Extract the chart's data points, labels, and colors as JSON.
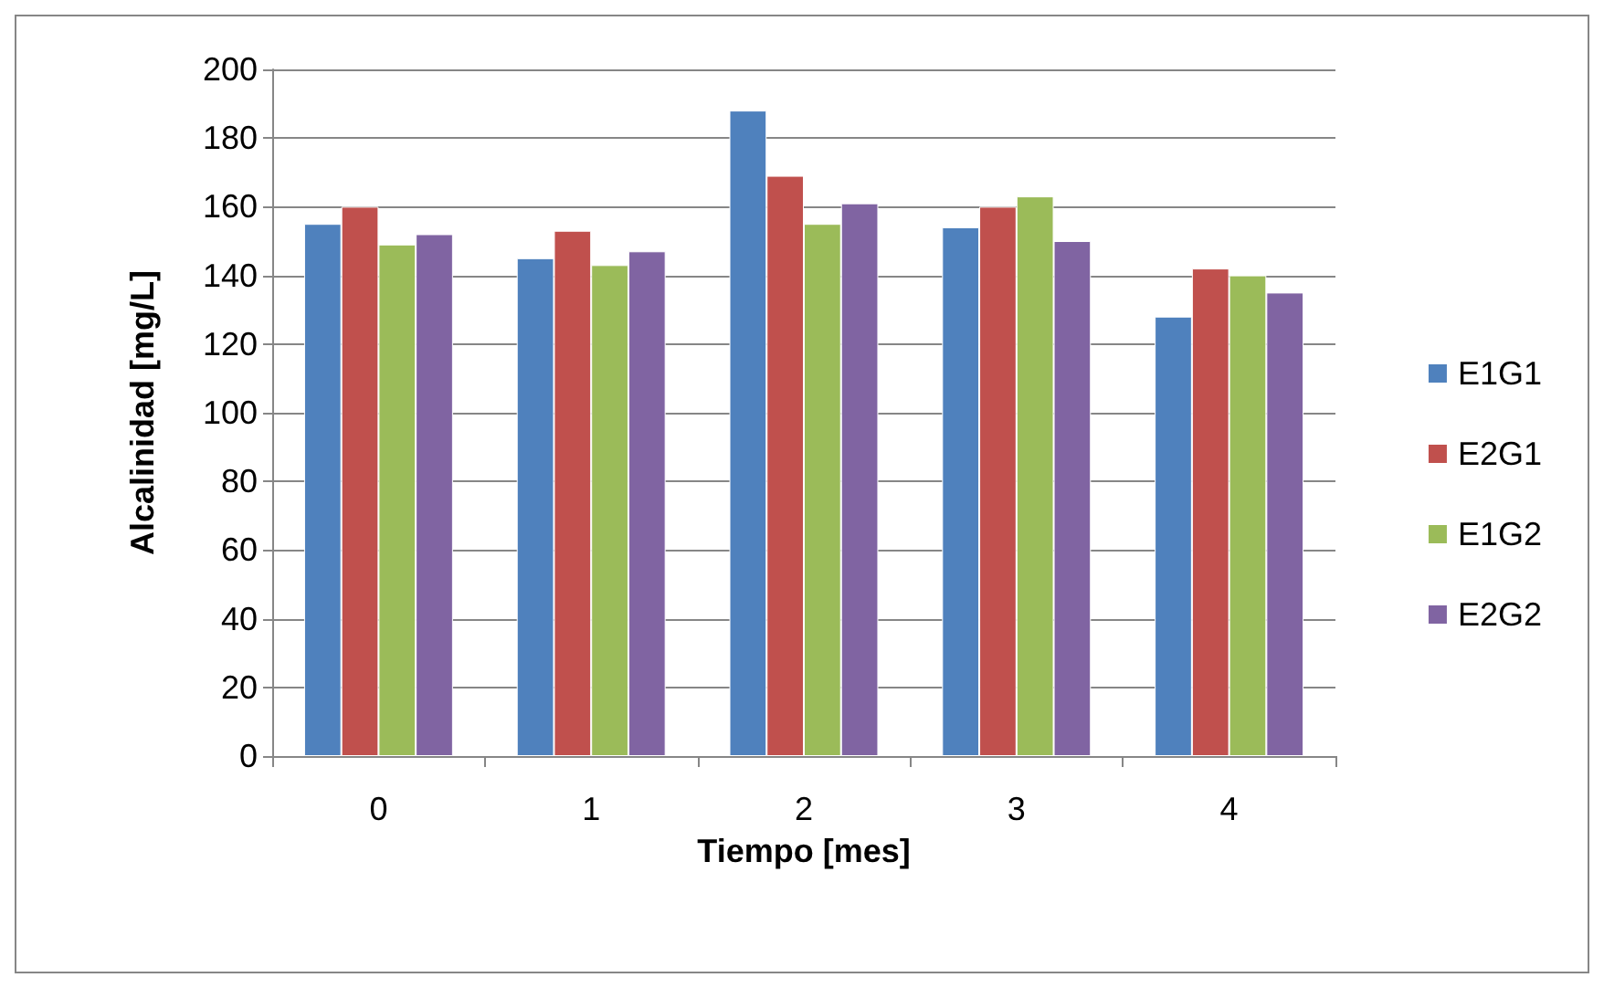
{
  "chart_data": {
    "type": "bar",
    "xlabel": "Tiempo [mes]",
    "ylabel": "Alcalinidad [mg/L]",
    "categories": [
      "0",
      "1",
      "2",
      "3",
      "4"
    ],
    "series": [
      {
        "name": "E1G1",
        "color": "#4f81bd",
        "values": [
          155,
          145,
          188,
          154,
          128
        ]
      },
      {
        "name": "E2G1",
        "color": "#c0504d",
        "values": [
          160,
          153,
          169,
          160,
          142
        ]
      },
      {
        "name": "E1G2",
        "color": "#9bbb59",
        "values": [
          149,
          143,
          155,
          163,
          140
        ]
      },
      {
        "name": "E2G2",
        "color": "#8064a2",
        "values": [
          152,
          147,
          161,
          150,
          135
        ]
      }
    ],
    "ylim": [
      0,
      200
    ],
    "yticks": [
      0,
      20,
      40,
      60,
      80,
      100,
      120,
      140,
      160,
      180,
      200
    ],
    "grid": "y",
    "legend": "right"
  }
}
